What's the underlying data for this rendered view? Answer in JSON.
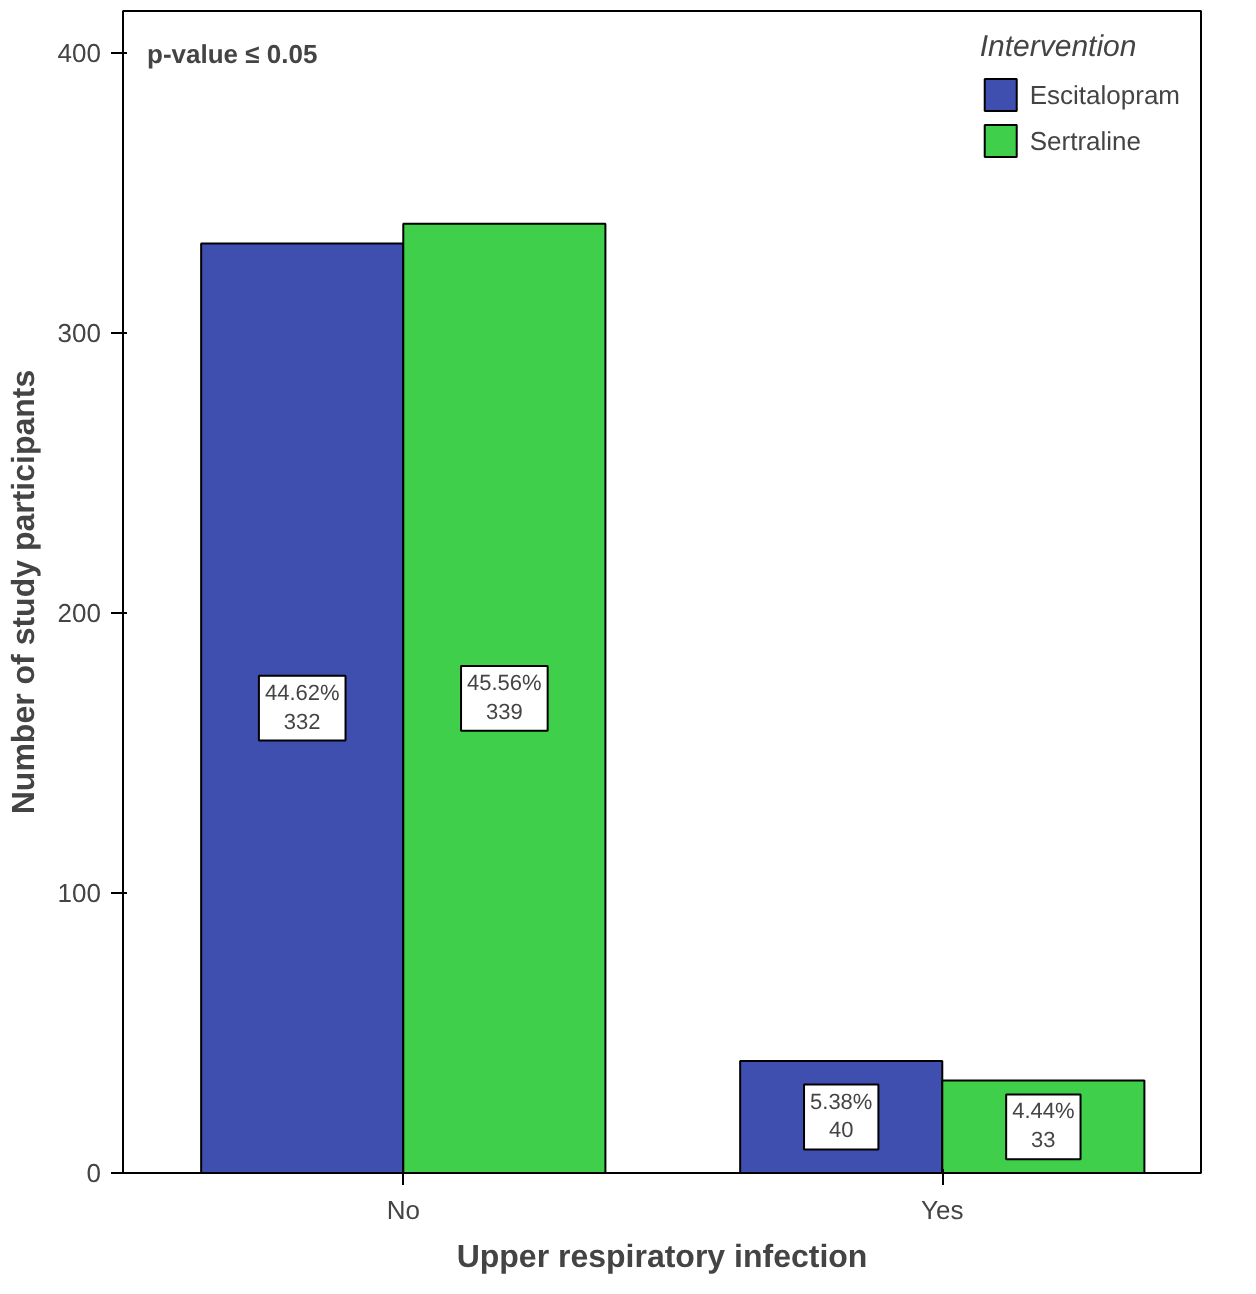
{
  "chart_data": {
    "type": "bar",
    "xlabel": "Upper respiratory infection",
    "ylabel": "Number of study participants",
    "categories": [
      "No",
      "Yes"
    ],
    "series": [
      {
        "name": "Escitalopram",
        "color": "#3f4fb0",
        "values": [
          332,
          40
        ],
        "value_labels": [
          "44.62%\n332",
          "5.38%\n40"
        ]
      },
      {
        "name": "Sertraline",
        "color": "#3fcf4a",
        "values": [
          339,
          33
        ],
        "value_labels": [
          "45.56%\n339",
          "4.44%\n33"
        ]
      }
    ],
    "legend_title": "Intervention",
    "legend": "top right",
    "annotations": [
      "p-value ≤ 0.05"
    ],
    "ylim": [
      0,
      415
    ],
    "yticks": [
      0,
      100,
      200,
      300,
      400
    ],
    "grid": false
  }
}
